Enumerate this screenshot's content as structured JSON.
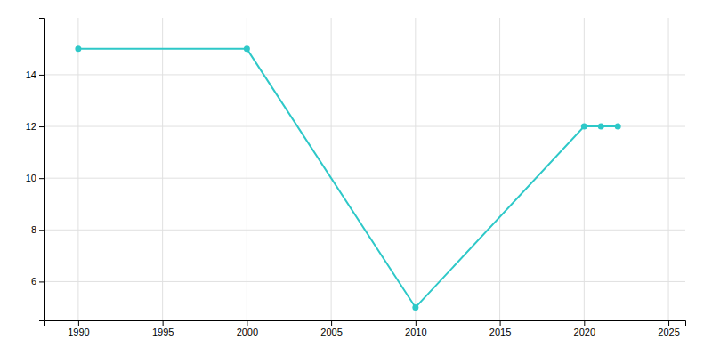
{
  "chart_data": {
    "type": "line",
    "x": [
      1990,
      2000,
      2010,
      2020,
      2021,
      2022
    ],
    "values": [
      15,
      15,
      5,
      12,
      12,
      12
    ],
    "color": "#2ec8c8",
    "marker": "circle",
    "xlim": [
      1988,
      2026
    ],
    "ylim": [
      4.5,
      16.2
    ],
    "xticks": [
      1990,
      1995,
      2000,
      2005,
      2010,
      2015,
      2020,
      2025
    ],
    "yticks": [
      6,
      8,
      10,
      12,
      14
    ],
    "grid": true
  }
}
